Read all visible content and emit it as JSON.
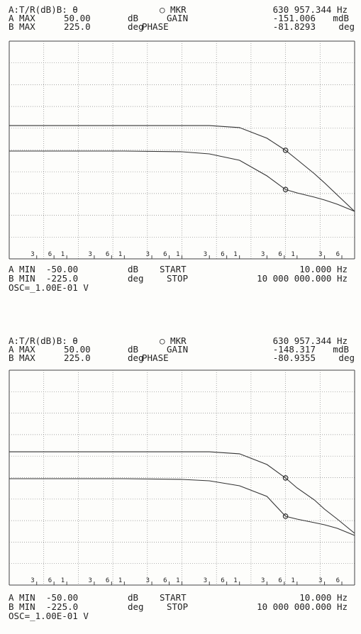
{
  "chart_data": [
    {
      "type": "line",
      "log_x": true,
      "xlim": [
        10,
        10000000
      ],
      "ylim": [
        -50,
        50
      ],
      "y2lim": [
        -225,
        225
      ],
      "header_rows": [
        [
          "A:T/R(dB)B: θ",
          "○ MKR",
          {
            "value": 630957.344,
            "label": "630 957.344 Hz"
          }
        ],
        [
          "A MAX",
          "50.00",
          "dB",
          "GAIN",
          "-151.006",
          "mdB"
        ],
        [
          "B MAX",
          "225.0",
          "deg",
          "PHASE",
          "-81.8293",
          "deg"
        ]
      ],
      "footer_rows": [
        [
          "A MIN",
          "-50.00",
          "dB",
          "START",
          "10.000 Hz"
        ],
        [
          "B MIN",
          "-225.0",
          "deg",
          "STOP",
          "10 000 000.000 Hz"
        ],
        [
          "OSC=_1.00E-01 V"
        ]
      ],
      "xticks": [
        {
          "value": 30,
          "label": "3"
        },
        {
          "value": 60,
          "label": "6"
        },
        {
          "value": 100,
          "label": "1"
        },
        {
          "value": 300,
          "label": "3"
        },
        {
          "value": 600,
          "label": "6"
        },
        {
          "value": 1000,
          "label": "1"
        },
        {
          "value": 3000,
          "label": "3"
        },
        {
          "value": 6000,
          "label": "6"
        },
        {
          "value": 10000,
          "label": "1"
        },
        {
          "value": 30000,
          "label": "3"
        },
        {
          "value": 60000,
          "label": "6"
        },
        {
          "value": 100000,
          "label": "1"
        },
        {
          "value": 300000,
          "label": "3"
        },
        {
          "value": 600000,
          "label": "6"
        },
        {
          "value": 1000000,
          "label": "1"
        },
        {
          "value": 3000000,
          "label": "3"
        },
        {
          "value": 6000000,
          "label": "6"
        }
      ],
      "x": [
        10,
        1000,
        10000,
        30000,
        100000,
        300000,
        630957.344,
        1000000,
        2000000,
        3000000,
        5000000,
        10000000
      ],
      "series": [
        {
          "color": "#333333",
          "values": [
            11.2,
            11.2,
            11.2,
            11.2,
            10.3,
            5.4,
            -0.15,
            -4.4,
            -10.9,
            -15.1,
            -20.7,
            -28.2
          ]
        },
        {
          "color": "#333333",
          "axis": "y2",
          "values": [
            -2.2,
            -2.2,
            -3.7,
            -8.1,
            -21.3,
            -53.5,
            -81.8,
            -88.7,
            -97.5,
            -103.3,
            -112.1,
            -126.8
          ]
        }
      ]
    },
    {
      "type": "line",
      "log_x": true,
      "xlim": [
        10,
        10000000
      ],
      "ylim": [
        -50,
        50
      ],
      "y2lim": [
        -225,
        225
      ],
      "header_rows": [
        [
          "A:T/R(dB)B: θ",
          "○ MKR",
          {
            "value": 630957.344,
            "label": "630 957.344 Hz"
          }
        ],
        [
          "A MAX",
          "50.00",
          "dB",
          "GAIN",
          "-148.317",
          "mdB"
        ],
        [
          "B MAX",
          "225.0",
          "deg",
          "PHASE",
          "-80.9355",
          "deg"
        ]
      ],
      "footer_rows": [
        [
          "A MIN",
          "-50.00",
          "dB",
          "START",
          "10.000 Hz"
        ],
        [
          "B MIN",
          "-225.0",
          "deg",
          "STOP",
          "10 000 000.000 Hz"
        ],
        [
          "OSC=_1.00E-01 V"
        ]
      ],
      "xticks": [
        {
          "value": 30,
          "label": "3"
        },
        {
          "value": 60,
          "label": "6"
        },
        {
          "value": 100,
          "label": "1"
        },
        {
          "value": 300,
          "label": "3"
        },
        {
          "value": 600,
          "label": "6"
        },
        {
          "value": 1000,
          "label": "1"
        },
        {
          "value": 3000,
          "label": "3"
        },
        {
          "value": 6000,
          "label": "6"
        },
        {
          "value": 10000,
          "label": "1"
        },
        {
          "value": 30000,
          "label": "3"
        },
        {
          "value": 60000,
          "label": "6"
        },
        {
          "value": 100000,
          "label": "1"
        },
        {
          "value": 300000,
          "label": "3"
        },
        {
          "value": 600000,
          "label": "6"
        },
        {
          "value": 1000000,
          "label": "1"
        },
        {
          "value": 3000000,
          "label": "3"
        },
        {
          "value": 6000000,
          "label": "6"
        }
      ],
      "x": [
        10,
        1000,
        10000,
        30000,
        100000,
        300000,
        630957.344,
        1000000,
        2000000,
        3000000,
        5000000,
        10000000
      ],
      "series": [
        {
          "color": "#333333",
          "values": [
            12.0,
            12.0,
            12.0,
            12.0,
            11.1,
            6.1,
            -0.15,
            -4.8,
            -10.4,
            -14.7,
            -19.3,
            -25.9
          ]
        },
        {
          "color": "#333333",
          "axis": "y2",
          "values": [
            -2.2,
            -2.2,
            -3.7,
            -6.7,
            -17.1,
            -39.3,
            -80.9,
            -86.9,
            -94.3,
            -98.7,
            -106.2,
            -121.0
          ]
        }
      ]
    }
  ]
}
